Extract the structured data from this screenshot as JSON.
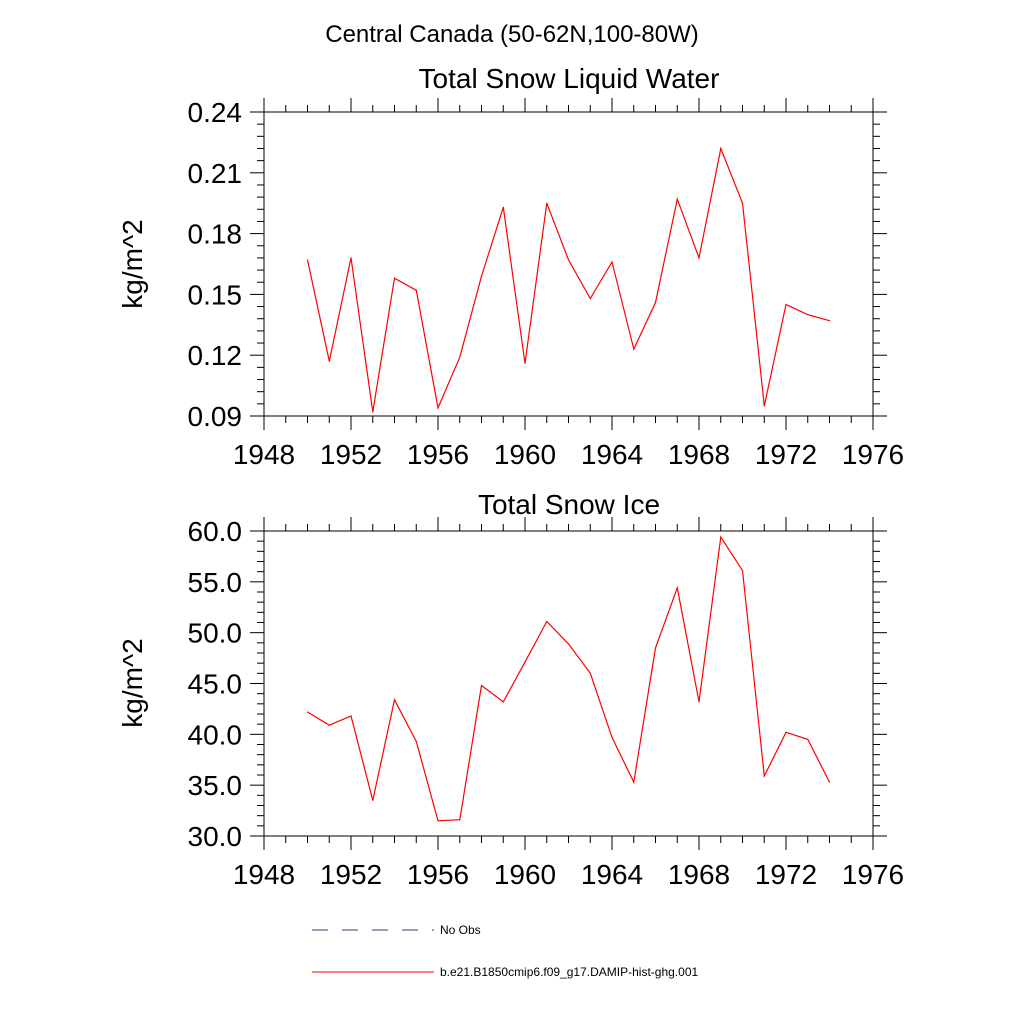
{
  "figure": {
    "title": "Central Canada (50-62N,100-80W)"
  },
  "colors": {
    "series_line": "#ff0000",
    "no_obs_line": "#3a3a80",
    "axis": "#000000"
  },
  "chart_data": [
    {
      "type": "line",
      "title": "Total Snow Liquid Water",
      "xlabel": "",
      "ylabel": "kg/m^2",
      "xlim": [
        1948,
        1976
      ],
      "ylim": [
        0.09,
        0.24
      ],
      "xticks": [
        1948,
        1952,
        1956,
        1960,
        1964,
        1968,
        1972,
        1976
      ],
      "xtick_labels": [
        "1948",
        "1952",
        "1956",
        "1960",
        "1964",
        "1968",
        "1972",
        "1976"
      ],
      "yticks": [
        0.09,
        0.12,
        0.15,
        0.18,
        0.21,
        0.24
      ],
      "ytick_labels": [
        "0.09",
        "0.12",
        "0.15",
        "0.18",
        "0.21",
        "0.24"
      ],
      "grid": false,
      "x": [
        1950,
        1951,
        1952,
        1953,
        1954,
        1955,
        1956,
        1957,
        1958,
        1959,
        1960,
        1961,
        1962,
        1963,
        1964,
        1965,
        1966,
        1967,
        1968,
        1969,
        1970,
        1971,
        1972,
        1973,
        1974
      ],
      "series": [
        {
          "name": "b.e21.B1850cmip6.f09_g17.DAMIP-hist-ghg.001",
          "values": [
            0.167,
            0.117,
            0.168,
            0.092,
            0.158,
            0.152,
            0.094,
            0.119,
            0.159,
            0.193,
            0.116,
            0.195,
            0.167,
            0.148,
            0.166,
            0.123,
            0.146,
            0.197,
            0.168,
            0.222,
            0.195,
            0.095,
            0.145,
            0.14,
            0.137
          ]
        }
      ]
    },
    {
      "type": "line",
      "title": "Total Snow Ice",
      "xlabel": "",
      "ylabel": "kg/m^2",
      "xlim": [
        1948,
        1976
      ],
      "ylim": [
        30.0,
        60.0
      ],
      "xticks": [
        1948,
        1952,
        1956,
        1960,
        1964,
        1968,
        1972,
        1976
      ],
      "xtick_labels": [
        "1948",
        "1952",
        "1956",
        "1960",
        "1964",
        "1968",
        "1972",
        "1976"
      ],
      "yticks": [
        30,
        35,
        40,
        45,
        50,
        55,
        60
      ],
      "ytick_labels": [
        "30.0",
        "35.0",
        "40.0",
        "45.0",
        "50.0",
        "55.0",
        "60.0"
      ],
      "grid": false,
      "x": [
        1950,
        1951,
        1952,
        1953,
        1954,
        1955,
        1956,
        1957,
        1958,
        1959,
        1960,
        1961,
        1962,
        1963,
        1964,
        1965,
        1966,
        1967,
        1968,
        1969,
        1970,
        1971,
        1972,
        1973,
        1974
      ],
      "series": [
        {
          "name": "b.e21.B1850cmip6.f09_g17.DAMIP-hist-ghg.001",
          "values": [
            42.2,
            40.9,
            41.8,
            33.5,
            43.4,
            39.3,
            31.5,
            31.6,
            44.8,
            43.2,
            47.1,
            51.1,
            48.9,
            46.0,
            39.7,
            35.3,
            48.5,
            54.4,
            43.2,
            59.4,
            56.1,
            35.9,
            40.2,
            39.5,
            35.3
          ]
        }
      ]
    }
  ],
  "legend": {
    "placement": "bottom-center",
    "entries": [
      {
        "label": "No Obs",
        "style": "dashed"
      },
      {
        "label": "b.e21.B1850cmip6.f09_g17.DAMIP-hist-ghg.001",
        "style": "solid"
      }
    ]
  }
}
